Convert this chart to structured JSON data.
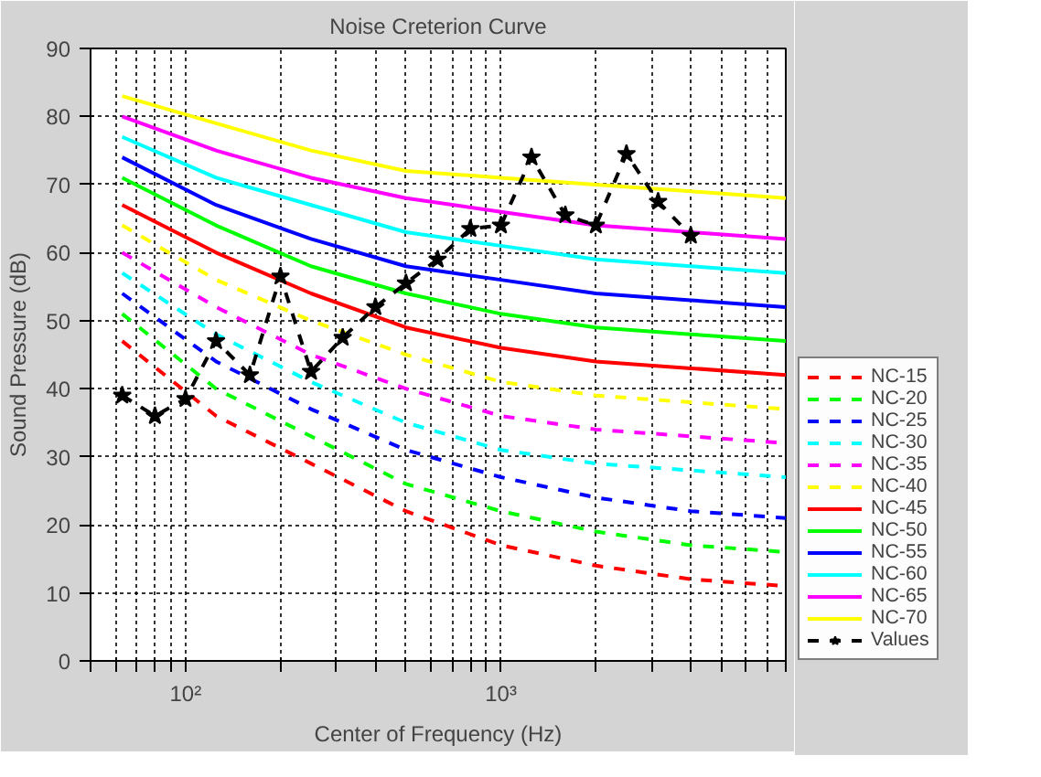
{
  "chart_data": {
    "type": "line",
    "title": "Noise Creterion Curve",
    "xlabel": "Center of Frequency (Hz)",
    "ylabel": "Sound Pressure (dB)",
    "log": "x",
    "grid": true,
    "legend": "right",
    "xlim": [
      50,
      8000
    ],
    "ylim": [
      0,
      90
    ],
    "xticks": [
      {
        "value": 50,
        "label": null
      },
      {
        "value": 60,
        "label": null
      },
      {
        "value": 70,
        "label": null
      },
      {
        "value": 80,
        "label": null
      },
      {
        "value": 90,
        "label": null
      },
      {
        "value": 100,
        "label": "10²"
      },
      {
        "value": 200,
        "label": null
      },
      {
        "value": 300,
        "label": null
      },
      {
        "value": 400,
        "label": null
      },
      {
        "value": 500,
        "label": null
      },
      {
        "value": 600,
        "label": null
      },
      {
        "value": 700,
        "label": null
      },
      {
        "value": 800,
        "label": null
      },
      {
        "value": 900,
        "label": null
      },
      {
        "value": 1000,
        "label": "10³"
      },
      {
        "value": 2000,
        "label": null
      },
      {
        "value": 3000,
        "label": null
      },
      {
        "value": 4000,
        "label": null
      },
      {
        "value": 5000,
        "label": null
      },
      {
        "value": 6000,
        "label": null
      },
      {
        "value": 7000,
        "label": null
      },
      {
        "value": 8000,
        "label": null
      }
    ],
    "yticks": [
      0,
      10,
      20,
      30,
      40,
      50,
      60,
      70,
      80,
      90
    ],
    "x": [
      63,
      125,
      250,
      500,
      1000,
      2000,
      4000,
      8000
    ],
    "series": [
      {
        "name": "NC-15",
        "color": "#ff0000",
        "line_style": "dashed",
        "values": [
          47,
          36,
          29,
          22,
          17,
          14,
          12,
          11
        ]
      },
      {
        "name": "NC-20",
        "color": "#00ff00",
        "line_style": "dashed",
        "values": [
          51,
          40,
          33,
          26,
          22,
          19,
          17,
          16
        ]
      },
      {
        "name": "NC-25",
        "color": "#0000ff",
        "line_style": "dashed",
        "values": [
          54,
          44,
          37,
          31,
          27,
          24,
          22,
          21
        ]
      },
      {
        "name": "NC-30",
        "color": "#00ffff",
        "line_style": "dashed",
        "values": [
          57,
          48,
          41,
          35,
          31,
          29,
          28,
          27
        ]
      },
      {
        "name": "NC-35",
        "color": "#ff00ff",
        "line_style": "dashed",
        "values": [
          60,
          52,
          45,
          40,
          36,
          34,
          33,
          32
        ]
      },
      {
        "name": "NC-40",
        "color": "#ffff00",
        "line_style": "dashed",
        "values": [
          64,
          56,
          50,
          45,
          41,
          39,
          38,
          37
        ]
      },
      {
        "name": "NC-45",
        "color": "#ff0000",
        "line_style": "solid",
        "values": [
          67,
          60,
          54,
          49,
          46,
          44,
          43,
          42
        ]
      },
      {
        "name": "NC-50",
        "color": "#00ff00",
        "line_style": "solid",
        "values": [
          71,
          64,
          58,
          54,
          51,
          49,
          48,
          47
        ]
      },
      {
        "name": "NC-55",
        "color": "#0000ff",
        "line_style": "solid",
        "values": [
          74,
          67,
          62,
          58,
          56,
          54,
          53,
          52
        ]
      },
      {
        "name": "NC-60",
        "color": "#00ffff",
        "line_style": "solid",
        "values": [
          77,
          71,
          67,
          63,
          61,
          59,
          58,
          57
        ]
      },
      {
        "name": "NC-65",
        "color": "#ff00ff",
        "line_style": "solid",
        "values": [
          80,
          75,
          71,
          68,
          66,
          64,
          63,
          62
        ]
      },
      {
        "name": "NC-70",
        "color": "#ffff00",
        "line_style": "solid",
        "values": [
          83,
          79,
          75,
          72,
          71,
          70,
          69,
          68
        ]
      },
      {
        "name": "Values",
        "color": "#000000",
        "line_style": "dashed",
        "marker": "star",
        "x": [
          63,
          80,
          100,
          125,
          160,
          200,
          250,
          315,
          400,
          500,
          630,
          800,
          1000,
          1250,
          1600,
          2000,
          2500,
          3150,
          4000
        ],
        "values": [
          39,
          36,
          38.5,
          47,
          42,
          56.5,
          42.5,
          47.5,
          52,
          55.5,
          59,
          63.5,
          64,
          74,
          65.5,
          64,
          74.5,
          67.5,
          62.5
        ]
      }
    ]
  }
}
